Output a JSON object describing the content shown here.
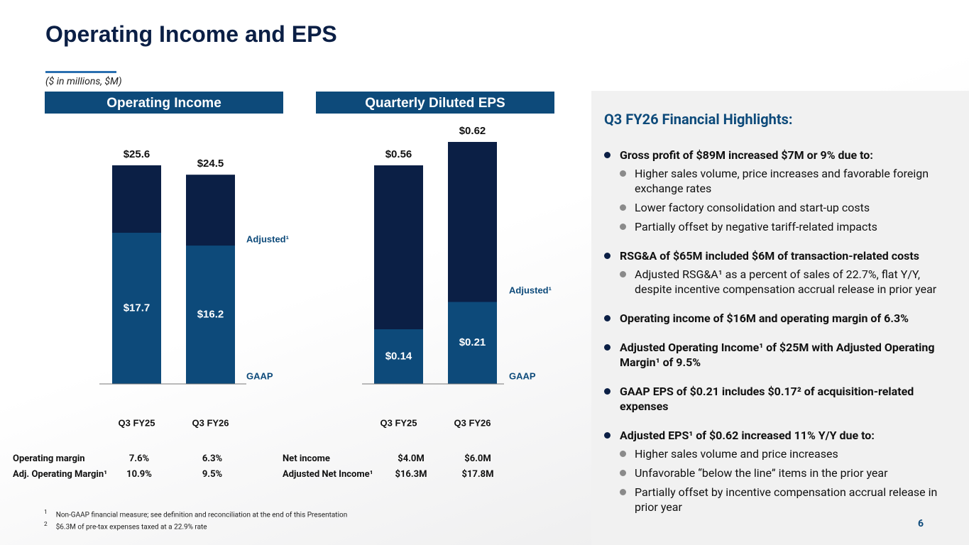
{
  "title": "Operating Income and EPS",
  "subtitle": "($ in millions, $M)",
  "chart_data": [
    {
      "type": "bar",
      "title": "Operating Income",
      "categories": [
        "Q3 FY25",
        "Q3 FY26"
      ],
      "ylim": [
        0,
        30
      ],
      "series": [
        {
          "name": "Adjusted¹",
          "color": "#0b1f45",
          "values": [
            25.6,
            24.5
          ],
          "value_labels": [
            "$25.6",
            "$24.5"
          ]
        },
        {
          "name": "GAAP",
          "color": "#0d4a7a",
          "values": [
            17.7,
            16.2
          ],
          "value_labels": [
            "$17.7",
            "$16.2"
          ]
        }
      ]
    },
    {
      "type": "bar",
      "title": "Quarterly Diluted EPS",
      "categories": [
        "Q3 FY25",
        "Q3 FY26"
      ],
      "ylim": [
        0,
        0.7
      ],
      "series": [
        {
          "name": "Adjusted¹",
          "color": "#0b1f45",
          "values": [
            0.56,
            0.62
          ],
          "value_labels": [
            "$0.56",
            "$0.62"
          ]
        },
        {
          "name": "GAAP",
          "color": "#0d4a7a",
          "values": [
            0.14,
            0.21
          ],
          "value_labels": [
            "$0.14",
            "$0.21"
          ]
        }
      ]
    }
  ],
  "tables": [
    {
      "rows": [
        [
          "Operating margin",
          "7.6%",
          "6.3%"
        ],
        [
          "Adj. Operating Margin¹",
          "10.9%",
          "9.5%"
        ]
      ]
    },
    {
      "rows": [
        [
          "Net income",
          "$4.0M",
          "$6.0M"
        ],
        [
          "Adjusted Net Income¹",
          "$16.3M",
          "$17.8M"
        ]
      ]
    }
  ],
  "highlights": {
    "title": "Q3 FY26 Financial Highlights:",
    "items": [
      {
        "text": "Gross profit of $89M increased $7M or 9% due to:",
        "subitems": [
          "Higher sales volume, price increases and favorable foreign exchange rates",
          "Lower factory consolidation and start-up costs",
          "Partially offset by negative tariff-related impacts"
        ]
      },
      {
        "text": "RSG&A of $65M included $6M of transaction-related costs",
        "subitems": [
          "Adjusted RSG&A¹ as a percent of sales of 22.7%, flat Y/Y, despite incentive compensation accrual release in prior year"
        ]
      },
      {
        "text": "Operating income of $16M and operating margin of 6.3%",
        "subitems": []
      },
      {
        "text": "Adjusted Operating Income¹ of $25M with Adjusted Operating Margin¹ of 9.5%",
        "subitems": []
      },
      {
        "text": "GAAP EPS of $0.21 includes $0.17² of acquisition-related expenses",
        "subitems": []
      },
      {
        "text": "Adjusted EPS¹ of $0.62 increased 11% Y/Y due to:",
        "subitems": [
          "Higher sales volume and price increases",
          "Unfavorable “below the line” items in the prior year",
          "Partially offset by incentive compensation accrual release in prior year"
        ]
      }
    ]
  },
  "footnotes": [
    {
      "mark": "1",
      "text": "Non-GAAP financial measure; see definition and reconciliation at the end of this Presentation"
    },
    {
      "mark": "2",
      "text": "$6.3M of pre-tax expenses taxed at a 22.9% rate"
    }
  ],
  "page_number": "6"
}
